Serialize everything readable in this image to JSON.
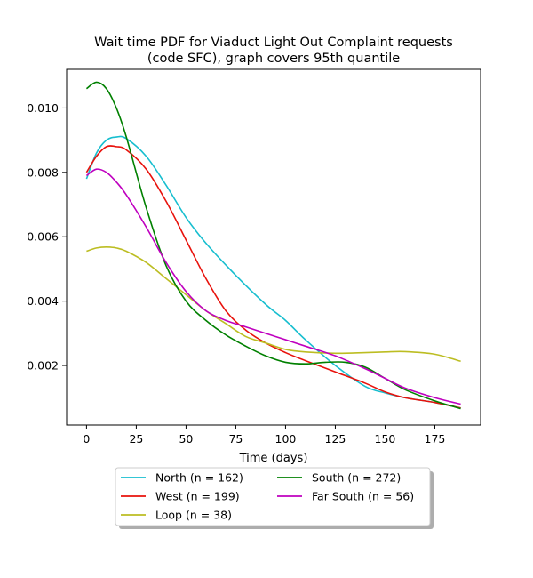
{
  "chart_data": {
    "type": "line",
    "title": "Wait time PDF for Viaduct Light Out Complaint  requests\n(code SFC), graph covers 95th quantile",
    "xlabel": "Time (days)",
    "ylabel": "",
    "xlim": [
      -10,
      198
    ],
    "ylim": [
      0.00015,
      0.0112
    ],
    "xticks": [
      0,
      25,
      50,
      75,
      100,
      125,
      150,
      175
    ],
    "yticks": [
      0.002,
      0.004,
      0.006,
      0.008,
      0.01
    ],
    "ytick_labels": [
      "0.002",
      "0.004",
      "0.006",
      "0.008",
      "0.010"
    ],
    "grid": false,
    "legend_position": "below plot, center, 2 columns",
    "series": [
      {
        "name": "North (n = 162)",
        "color": "#17becf",
        "x": [
          0,
          5,
          10,
          15,
          20,
          30,
          40,
          50,
          60,
          75,
          90,
          100,
          110,
          125,
          140,
          150,
          160,
          175,
          188
        ],
        "y": [
          0.0078,
          0.0086,
          0.009,
          0.0091,
          0.00905,
          0.0085,
          0.0076,
          0.0066,
          0.0058,
          0.0048,
          0.0039,
          0.0034,
          0.0028,
          0.002,
          0.00135,
          0.00115,
          0.001,
          0.00085,
          0.00068
        ]
      },
      {
        "name": "West (n = 199)",
        "color": "#e8120c",
        "x": [
          0,
          5,
          10,
          15,
          20,
          30,
          40,
          50,
          60,
          70,
          80,
          90,
          100,
          110,
          125,
          140,
          150,
          160,
          175,
          188
        ],
        "y": [
          0.008,
          0.0085,
          0.0088,
          0.0088,
          0.0087,
          0.0081,
          0.0071,
          0.0059,
          0.0047,
          0.0037,
          0.0031,
          0.0027,
          0.0024,
          0.00215,
          0.0018,
          0.00145,
          0.00118,
          0.001,
          0.00085,
          0.00068
        ]
      },
      {
        "name": "Loop (n = 38)",
        "color": "#bcbd22",
        "x": [
          0,
          5,
          10,
          15,
          20,
          30,
          40,
          50,
          60,
          70,
          80,
          90,
          100,
          110,
          125,
          140,
          150,
          160,
          175,
          188
        ],
        "y": [
          0.00555,
          0.00565,
          0.00568,
          0.00565,
          0.00555,
          0.0052,
          0.0047,
          0.0042,
          0.0037,
          0.0033,
          0.0029,
          0.0027,
          0.0025,
          0.00242,
          0.00238,
          0.0024,
          0.00242,
          0.00243,
          0.00235,
          0.00213
        ]
      },
      {
        "name": "South (n = 272)",
        "color": "#008000",
        "x": [
          0,
          5,
          10,
          15,
          20,
          30,
          40,
          50,
          60,
          70,
          80,
          90,
          100,
          110,
          120,
          130,
          140,
          150,
          160,
          175,
          188
        ],
        "y": [
          0.0106,
          0.0108,
          0.0106,
          0.01,
          0.0091,
          0.0069,
          0.0051,
          0.004,
          0.0034,
          0.00295,
          0.0026,
          0.0023,
          0.0021,
          0.00205,
          0.0021,
          0.0021,
          0.00195,
          0.0016,
          0.00125,
          0.0009,
          0.00066
        ]
      },
      {
        "name": "Far South (n = 56)",
        "color": "#bf00bf",
        "x": [
          0,
          5,
          10,
          15,
          20,
          30,
          40,
          50,
          60,
          70,
          80,
          90,
          100,
          110,
          125,
          140,
          150,
          160,
          175,
          188
        ],
        "y": [
          0.0079,
          0.0081,
          0.008,
          0.0077,
          0.0073,
          0.0063,
          0.0052,
          0.0043,
          0.0037,
          0.0034,
          0.0032,
          0.003,
          0.0028,
          0.0026,
          0.0023,
          0.0019,
          0.0016,
          0.0013,
          0.001,
          0.0008
        ]
      }
    ]
  }
}
